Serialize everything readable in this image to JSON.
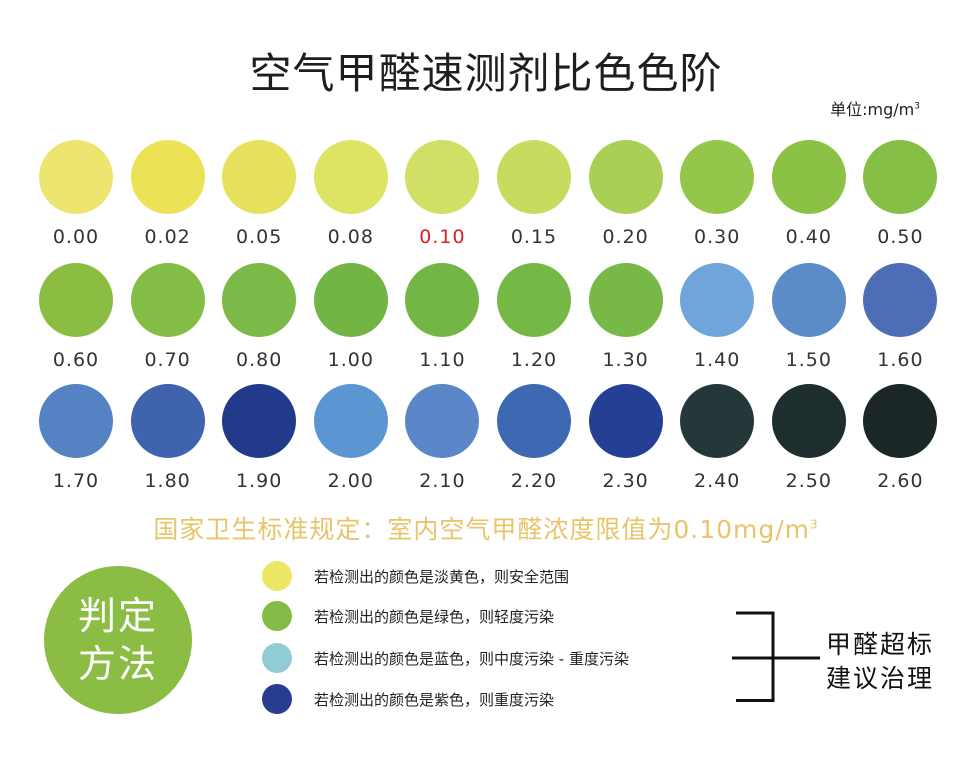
{
  "title": "空气甲醛速测剂比色色阶",
  "unit": {
    "prefix": "单位:mg/m",
    "sup": "3"
  },
  "swatches": [
    {
      "value": "0.00",
      "color": "#ece56f",
      "highlight": false
    },
    {
      "value": "0.02",
      "color": "#ebe256",
      "highlight": false
    },
    {
      "value": "0.05",
      "color": "#e5e15d",
      "highlight": false
    },
    {
      "value": "0.08",
      "color": "#dde363",
      "highlight": false
    },
    {
      "value": "0.10",
      "color": "#d1df65",
      "highlight": true
    },
    {
      "value": "0.15",
      "color": "#c6dc5e",
      "highlight": false
    },
    {
      "value": "0.20",
      "color": "#a9d055",
      "highlight": false
    },
    {
      "value": "0.30",
      "color": "#94c64b",
      "highlight": false
    },
    {
      "value": "0.40",
      "color": "#8bc245",
      "highlight": false
    },
    {
      "value": "0.50",
      "color": "#86bf45",
      "highlight": false
    },
    {
      "value": "0.60",
      "color": "#8cbd43",
      "highlight": false
    },
    {
      "value": "0.70",
      "color": "#84bd45",
      "highlight": false
    },
    {
      "value": "0.80",
      "color": "#7bb948",
      "highlight": false
    },
    {
      "value": "1.00",
      "color": "#72b545",
      "highlight": false
    },
    {
      "value": "1.10",
      "color": "#74b645",
      "highlight": false
    },
    {
      "value": "1.20",
      "color": "#76b845",
      "highlight": false
    },
    {
      "value": "1.30",
      "color": "#78b846",
      "highlight": false
    },
    {
      "value": "1.40",
      "color": "#6fa5db",
      "highlight": false
    },
    {
      "value": "1.50",
      "color": "#5b8cc8",
      "highlight": false
    },
    {
      "value": "1.60",
      "color": "#4d6db4",
      "highlight": false
    },
    {
      "value": "1.70",
      "color": "#5482c3",
      "highlight": false
    },
    {
      "value": "1.80",
      "color": "#3f63ad",
      "highlight": false
    },
    {
      "value": "1.90",
      "color": "#223a8a",
      "highlight": false
    },
    {
      "value": "2.00",
      "color": "#5c96d2",
      "highlight": false
    },
    {
      "value": "2.10",
      "color": "#5b87c8",
      "highlight": false
    },
    {
      "value": "2.20",
      "color": "#3d69b3",
      "highlight": false
    },
    {
      "value": "2.30",
      "color": "#253f95",
      "highlight": false
    },
    {
      "value": "2.40",
      "color": "#24383a",
      "highlight": false
    },
    {
      "value": "2.50",
      "color": "#1e2d2e",
      "highlight": false
    },
    {
      "value": "2.60",
      "color": "#1b2627",
      "highlight": false
    }
  ],
  "standard": {
    "text": "国家卫生标准规定：室内空气甲醛浓度限值为0.10mg/m",
    "sup": "3"
  },
  "method": {
    "line1": "判定",
    "line2": "方法"
  },
  "legend": [
    {
      "color": "#ece565",
      "text": "若检测出的颜色是淡黄色，则安全范围"
    },
    {
      "color": "#84bd45",
      "text": "若检测出的颜色是绿色，则轻度污染"
    },
    {
      "color": "#92ccd3",
      "text": "若检测出的颜色是蓝色，则中度污染 - 重度污染"
    },
    {
      "color": "#283d92",
      "text": "若检测出的颜色是紫色，则重度污染"
    }
  ],
  "action": {
    "line1": "甲醛超标",
    "line2": "建议治理"
  }
}
